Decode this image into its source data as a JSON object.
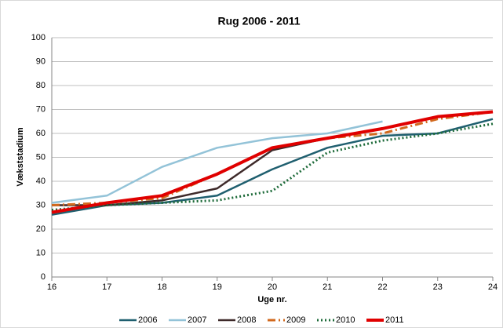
{
  "chart_data": {
    "type": "line",
    "title": "Rug 2006 - 2011",
    "x_label": "Uge nr.",
    "y_label": "Vækststadium",
    "xlim": [
      16,
      24
    ],
    "xticks": [
      16,
      17,
      18,
      19,
      20,
      21,
      22,
      23,
      24
    ],
    "ylim": [
      0,
      100
    ],
    "yticks": [
      0,
      10,
      20,
      30,
      40,
      50,
      60,
      70,
      80,
      90,
      100
    ],
    "grid": true,
    "legend": "bottom",
    "x": [
      16,
      17,
      18,
      19,
      20,
      21,
      22,
      23,
      24
    ],
    "series": [
      {
        "name": "2006",
        "color": "#1f5f6f",
        "style": "solid",
        "values": [
          26,
          30,
          31,
          34,
          45,
          54,
          59,
          60,
          66
        ]
      },
      {
        "name": "2007",
        "color": "#93c3d8",
        "style": "solid",
        "values": [
          31,
          34,
          46,
          54,
          58,
          60,
          65,
          null,
          null
        ]
      },
      {
        "name": "2008",
        "color": "#3e2a2a",
        "style": "solid",
        "values": [
          30,
          30,
          32,
          37,
          53,
          58,
          null,
          null,
          null
        ]
      },
      {
        "name": "2009",
        "color": "#d2691e",
        "style": "dashdot",
        "values": [
          30,
          31,
          33,
          43,
          54,
          58,
          60,
          66,
          69
        ]
      },
      {
        "name": "2010",
        "color": "#1e6b3a",
        "style": "dotted",
        "values": [
          28,
          30,
          31,
          32,
          36,
          52,
          57,
          60,
          64
        ]
      },
      {
        "name": "2011",
        "color": "#e00000",
        "style": "bold",
        "values": [
          27,
          31,
          34,
          43,
          54,
          58,
          62,
          67,
          69
        ]
      }
    ]
  }
}
